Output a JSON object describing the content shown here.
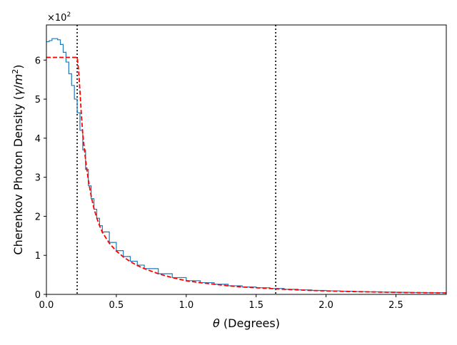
{
  "chart_data": {
    "type": "line",
    "xlabel_symbol": "θ",
    "xlabel_rest": " (Degrees)",
    "ylabel_main": "Cherenkov Photon Density (",
    "ylabel_gamma": "γ",
    "ylabel_mid": "/",
    "ylabel_m": "m",
    "ylabel_exp": "2",
    "ylabel_close": ")",
    "y_multiplier_base": "×10",
    "y_multiplier_exp": "2",
    "xlim": [
      0.0,
      2.86
    ],
    "ylim": [
      0.0,
      6.9
    ],
    "x_ticks": [
      0.0,
      0.5,
      1.0,
      1.5,
      2.0,
      2.5
    ],
    "x_tick_labels": [
      "0.0",
      "0.5",
      "1.0",
      "1.5",
      "2.0",
      "2.5"
    ],
    "y_ticks": [
      0,
      1,
      2,
      3,
      4,
      5,
      6
    ],
    "y_tick_labels": [
      "0",
      "1",
      "2",
      "3",
      "4",
      "5",
      "6"
    ],
    "vlines": [
      {
        "x": 0.22,
        "style": "dotted",
        "color": "#000000"
      },
      {
        "x": 1.64,
        "style": "dotted",
        "color": "#000000"
      }
    ],
    "series": [
      {
        "style": "step",
        "color": "#1f77b4",
        "x": [
          0.0,
          0.02,
          0.04,
          0.06,
          0.08,
          0.1,
          0.12,
          0.14,
          0.16,
          0.18,
          0.2,
          0.22,
          0.24,
          0.26,
          0.28,
          0.3,
          0.32,
          0.34,
          0.36,
          0.38,
          0.4,
          0.45,
          0.5,
          0.55,
          0.6,
          0.65,
          0.7,
          0.8,
          0.9,
          1.0,
          1.1,
          1.2,
          1.3,
          1.4,
          1.5,
          1.6,
          1.7,
          1.8,
          1.9,
          2.0,
          2.1,
          2.2,
          2.3,
          2.4,
          2.5,
          2.6,
          2.7,
          2.86
        ],
        "y": [
          6.47,
          6.5,
          6.55,
          6.55,
          6.52,
          6.4,
          6.2,
          5.95,
          5.65,
          5.35,
          5.0,
          4.65,
          4.2,
          3.7,
          3.2,
          2.78,
          2.45,
          2.18,
          1.95,
          1.76,
          1.6,
          1.33,
          1.12,
          0.97,
          0.85,
          0.75,
          0.66,
          0.53,
          0.43,
          0.35,
          0.3,
          0.26,
          0.22,
          0.19,
          0.17,
          0.15,
          0.13,
          0.115,
          0.1,
          0.09,
          0.08,
          0.072,
          0.065,
          0.058,
          0.052,
          0.047,
          0.043,
          0.038
        ]
      },
      {
        "style": "dashed",
        "color": "#ff0000",
        "x": [
          0.0,
          0.22,
          0.23,
          0.24,
          0.25,
          0.26,
          0.28,
          0.3,
          0.32,
          0.34,
          0.36,
          0.38,
          0.4,
          0.45,
          0.5,
          0.55,
          0.6,
          0.65,
          0.7,
          0.8,
          0.9,
          1.0,
          1.1,
          1.2,
          1.3,
          1.4,
          1.5,
          1.6,
          1.7,
          1.8,
          1.9,
          2.0,
          2.1,
          2.2,
          2.3,
          2.4,
          2.5,
          2.6,
          2.7,
          2.86
        ],
        "y": [
          6.07,
          6.07,
          5.75,
          5.2,
          4.6,
          4.1,
          3.45,
          2.92,
          2.52,
          2.2,
          1.96,
          1.76,
          1.59,
          1.31,
          1.11,
          0.96,
          0.84,
          0.74,
          0.66,
          0.53,
          0.43,
          0.35,
          0.3,
          0.26,
          0.22,
          0.19,
          0.17,
          0.15,
          0.13,
          0.115,
          0.1,
          0.09,
          0.08,
          0.072,
          0.065,
          0.058,
          0.052,
          0.047,
          0.043,
          0.038
        ]
      }
    ]
  }
}
